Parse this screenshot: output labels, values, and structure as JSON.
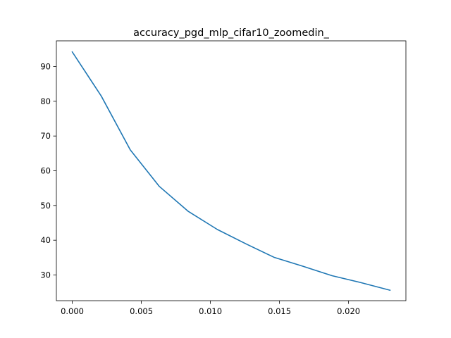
{
  "chart_data": {
    "type": "line",
    "title": "accuracy_pgd_mlp_cifar10_zoomedin_",
    "xlabel": "",
    "ylabel": "",
    "xlim": [
      -0.00115,
      0.02415
    ],
    "ylim": [
      22.6,
      97.4
    ],
    "x_ticks": [
      0.0,
      0.005,
      0.01,
      0.015,
      0.02
    ],
    "x_tick_labels": [
      "0.000",
      "0.005",
      "0.010",
      "0.015",
      "0.020"
    ],
    "y_ticks": [
      30,
      40,
      50,
      60,
      70,
      80,
      90
    ],
    "y_tick_labels": [
      "30",
      "40",
      "50",
      "60",
      "70",
      "80",
      "90"
    ],
    "grid": false,
    "series": [
      {
        "color": "#1f77b4",
        "x": [
          0.0,
          0.0021,
          0.0042,
          0.0063,
          0.0084,
          0.0105,
          0.0126,
          0.0146,
          0.0167,
          0.0188,
          0.0209,
          0.023
        ],
        "y": [
          94.2,
          81.5,
          66.0,
          55.5,
          48.3,
          43.1,
          38.9,
          35.1,
          32.5,
          29.8,
          27.8,
          25.6
        ]
      }
    ]
  }
}
